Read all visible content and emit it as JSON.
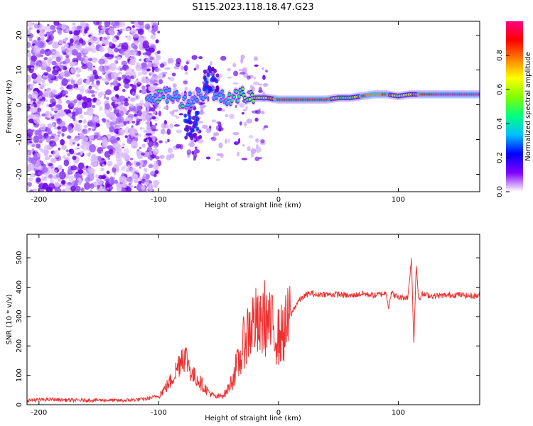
{
  "title": "S115.2023.118.18.47.G23",
  "colors": {
    "snr_line": "#ee3030",
    "spectrogram_scatter": "#8a2be2",
    "frame": "#000000"
  },
  "chart_data": [
    {
      "type": "heatmap",
      "xlabel": "Height of straight line (km)",
      "ylabel": "Frequency (Hz)",
      "xlim": [
        -210,
        168
      ],
      "ylim": [
        -25,
        24
      ],
      "xticks": [
        -200,
        -100,
        0,
        100
      ],
      "yticks": [
        -20,
        -10,
        0,
        10,
        20
      ],
      "colorbar": {
        "label": "Normalized spectral amplitude",
        "range": [
          0.0,
          1.0
        ],
        "ticks": [
          "0.0",
          "0.2",
          "0.4",
          "0.6",
          "0.8"
        ],
        "colormap": [
          "#ffffff",
          "#8000ff",
          "#0000ff",
          "#00c0ff",
          "#00ff80",
          "#80ff00",
          "#ffff00",
          "#ff8000",
          "#ff0000",
          "#ff0080"
        ]
      },
      "ridge": {
        "x_km": [
          -110,
          -100,
          -90,
          -80,
          -70,
          -60,
          -50,
          -40,
          -30,
          -20,
          -10,
          0,
          10,
          20,
          30,
          40,
          50,
          60,
          70,
          80,
          90,
          100,
          110,
          120,
          130,
          140,
          150,
          160,
          168
        ],
        "frequency_hz": [
          3,
          2,
          3,
          1,
          2,
          4,
          3,
          2,
          3,
          2,
          2,
          1.5,
          1.5,
          1.5,
          1.5,
          1.5,
          2,
          2,
          2.5,
          3,
          3,
          2.5,
          3,
          3,
          3,
          3,
          3,
          3,
          3
        ],
        "amplitude": [
          0.3,
          0.4,
          0.35,
          0.4,
          0.3,
          0.3,
          0.35,
          0.4,
          0.5,
          0.6,
          0.7,
          0.85,
          0.9,
          0.92,
          0.92,
          0.9,
          0.6,
          0.5,
          0.85,
          0.8,
          0.85,
          0.6,
          0.7,
          0.85,
          0.95,
          0.95,
          0.95,
          0.95,
          0.95
        ]
      }
    },
    {
      "type": "line",
      "xlabel": "Height of straight line (km)",
      "ylabel": "SNR (10 * v/v)",
      "xlim": [
        -210,
        168
      ],
      "ylim": [
        0,
        580
      ],
      "xticks": [
        -200,
        -100,
        0,
        100
      ],
      "yticks": [
        0,
        100,
        200,
        300,
        400,
        500
      ],
      "series": [
        {
          "x": [
            -210,
            -190,
            -170,
            -150,
            -130,
            -110,
            -100,
            -95,
            -90,
            -85,
            -80,
            -76,
            -72,
            -68,
            -64,
            -60,
            -56,
            -52,
            -48,
            -44,
            -40,
            -36,
            -32,
            -28,
            -24,
            -20,
            -16,
            -12,
            -8,
            -4,
            0,
            4,
            8,
            12,
            16,
            20,
            24,
            28,
            32,
            36,
            40,
            50,
            60,
            70,
            80,
            90,
            92,
            94,
            100,
            108,
            111,
            113,
            115,
            117,
            120,
            130,
            140,
            150,
            160,
            168
          ],
          "y": [
            15,
            18,
            15,
            16,
            14,
            20,
            30,
            55,
            80,
            120,
            175,
            150,
            100,
            90,
            70,
            50,
            35,
            25,
            30,
            40,
            70,
            120,
            150,
            230,
            260,
            290,
            250,
            300,
            270,
            260,
            230,
            245,
            280,
            320,
            350,
            365,
            375,
            380,
            372,
            378,
            375,
            376,
            370,
            378,
            372,
            380,
            330,
            380,
            365,
            365,
            500,
            210,
            480,
            360,
            375,
            370,
            372,
            375,
            370,
            372
          ]
        }
      ]
    }
  ]
}
